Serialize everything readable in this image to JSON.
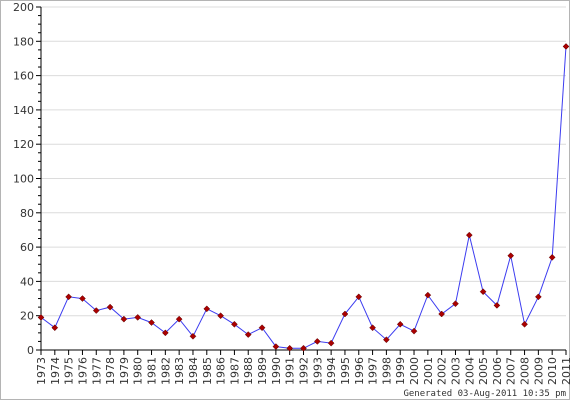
{
  "chart_data": {
    "type": "line",
    "title": "",
    "xlabel": "",
    "ylabel": "",
    "categories": [
      "1973",
      "1974",
      "1975",
      "1976",
      "1977",
      "1978",
      "1979",
      "1980",
      "1981",
      "1982",
      "1983",
      "1984",
      "1985",
      "1986",
      "1987",
      "1988",
      "1989",
      "1990",
      "1991",
      "1992",
      "1993",
      "1994",
      "1995",
      "1996",
      "1997",
      "1998",
      "1999",
      "2000",
      "2001",
      "2002",
      "2003",
      "2004",
      "2005",
      "2006",
      "2007",
      "2008",
      "2009",
      "2010",
      "2011"
    ],
    "series": [
      {
        "values": [
          19,
          13,
          31,
          30,
          23,
          25,
          18,
          19,
          16,
          10,
          18,
          8,
          24,
          20,
          15,
          9,
          13,
          2,
          1,
          1,
          5,
          4,
          21,
          31,
          13,
          6,
          15,
          11,
          32,
          21,
          27,
          67,
          34,
          26,
          55,
          15,
          31,
          54,
          177
        ]
      }
    ],
    "ylim": [
      0,
      200
    ],
    "yticks": [
      0,
      20,
      40,
      60,
      80,
      100,
      120,
      140,
      160,
      180,
      200
    ],
    "grid": true,
    "legend": "none",
    "line_color": "#3c3cf0",
    "marker_color": "#aa0000",
    "grid_color": "#dcdcdc",
    "axis_color": "#000000"
  },
  "footer": {
    "generated_text": "Generated 03-Aug-2011 10:35 pm"
  }
}
